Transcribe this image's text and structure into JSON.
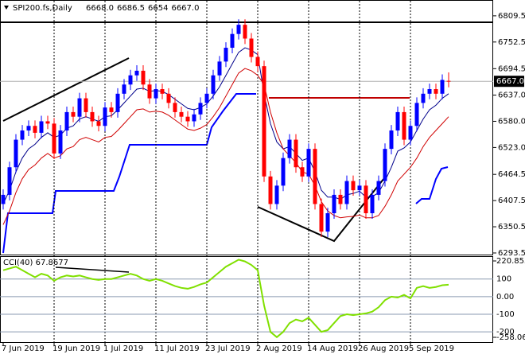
{
  "chart_data": [
    {
      "type": "candlestick",
      "title": "SPI200.fs,Daily",
      "header_values": [
        {
          "value": 6668,
          "label": "6668.0"
        },
        6686.5,
        6654,
        {
          "value": 6667,
          "label": "6667.0"
        }
      ],
      "categories": [
        "7 Jun 2019",
        null,
        null,
        null,
        null,
        null,
        null,
        null,
        "19 Jun 2019",
        null,
        null,
        null,
        null,
        null,
        null,
        null,
        "1 Jul 2019",
        null,
        null,
        null,
        null,
        null,
        null,
        null,
        "11 Jul 2019",
        null,
        null,
        null,
        null,
        null,
        null,
        null,
        "23 Jul 2019",
        null,
        null,
        null,
        null,
        null,
        null,
        null,
        "2 Aug 2019",
        null,
        null,
        null,
        null,
        null,
        null,
        null,
        "14 Aug 2019",
        null,
        null,
        null,
        null,
        null,
        null,
        null,
        "26 Aug 2019",
        null,
        null,
        null,
        null,
        null,
        null,
        null,
        "5 Sep 2019",
        null,
        null,
        null,
        null,
        null,
        null
      ],
      "open": [
        6400,
        6420,
        6480,
        6540,
        6560,
        6570,
        6555,
        6580,
        6575,
        6510,
        6560,
        6600,
        6590,
        6630,
        6600,
        6580,
        6570,
        6610,
        6600,
        6640,
        6660,
        6680,
        6690,
        6660,
        6630,
        6650,
        6640,
        6620,
        6600,
        6590,
        6580,
        6595,
        6620,
        6640,
        6680,
        6710,
        6740,
        6770,
        6790,
        6760,
        6720,
        6700,
        6460,
        6400,
        6440,
        6500,
        6540,
        6480,
        6460,
        6520,
        6400,
        6340,
        6380,
        6420,
        6400,
        6450,
        6430,
        6440,
        6380,
        6420,
        6450,
        6520,
        6560,
        6600,
        6540,
        6570,
        6620,
        6640,
        6650,
        6640,
        6668
      ],
      "high": [
        6432,
        6492,
        6552,
        6572,
        6582,
        6582,
        6592,
        6592,
        6587,
        6572,
        6612,
        6612,
        6642,
        6642,
        6612,
        6592,
        6622,
        6622,
        6652,
        6672,
        6692,
        6702,
        6702,
        6672,
        6662,
        6662,
        6652,
        6632,
        6612,
        6602,
        6607,
        6632,
        6652,
        6692,
        6722,
        6752,
        6782,
        6802,
        6802,
        6772,
        6732,
        6712,
        6472,
        6452,
        6512,
        6552,
        6552,
        6492,
        6532,
        6532,
        6412,
        6392,
        6432,
        6432,
        6462,
        6462,
        6452,
        6452,
        6432,
        6462,
        6532,
        6572,
        6612,
        6612,
        6582,
        6632,
        6652,
        6662,
        6662,
        6682,
        6686.5
      ],
      "low": [
        6388,
        6408,
        6468,
        6528,
        6548,
        6543,
        6543,
        6563,
        6498,
        6498,
        6548,
        6578,
        6578,
        6588,
        6568,
        6558,
        6558,
        6588,
        6588,
        6628,
        6648,
        6668,
        6648,
        6618,
        6618,
        6628,
        6608,
        6588,
        6578,
        6568,
        6568,
        6583,
        6608,
        6628,
        6668,
        6698,
        6728,
        6758,
        6748,
        6708,
        6688,
        6448,
        6388,
        6388,
        6428,
        6488,
        6468,
        6448,
        6448,
        6388,
        6328,
        6328,
        6368,
        6388,
        6388,
        6418,
        6418,
        6368,
        6368,
        6408,
        6438,
        6508,
        6548,
        6528,
        6528,
        6558,
        6608,
        6628,
        6628,
        6628,
        6654
      ],
      "close": [
        6420,
        6480,
        6540,
        6560,
        6570,
        6555,
        6580,
        6575,
        6510,
        6560,
        6600,
        6590,
        6630,
        6600,
        6580,
        6570,
        6610,
        6600,
        6640,
        6660,
        6680,
        6690,
        6660,
        6630,
        6650,
        6640,
        6620,
        6600,
        6590,
        6580,
        6595,
        6620,
        6640,
        6680,
        6710,
        6740,
        6770,
        6790,
        6760,
        6720,
        6700,
        6460,
        6400,
        6440,
        6500,
        6540,
        6480,
        6460,
        6520,
        6400,
        6340,
        6380,
        6420,
        6400,
        6450,
        6430,
        6440,
        6380,
        6420,
        6450,
        6520,
        6560,
        6600,
        6540,
        6570,
        6620,
        6640,
        6650,
        6640,
        6670,
        6667
      ],
      "series": [
        {
          "color": "#00008b",
          "values": [
            6400,
            6430,
            6470,
            6500,
            6520,
            6530,
            6545,
            6555,
            6545,
            6550,
            6565,
            6570,
            6585,
            6590,
            6585,
            6580,
            6590,
            6592,
            6605,
            6620,
            6635,
            6650,
            6652,
            6645,
            6647,
            6645,
            6638,
            6628,
            6618,
            6608,
            6605,
            6610,
            6618,
            6635,
            6655,
            6680,
            6705,
            6730,
            6740,
            6735,
            6725,
            6640,
            6575,
            6535,
            6520,
            6525,
            6510,
            6495,
            6500,
            6470,
            6430,
            6415,
            6415,
            6410,
            6420,
            6423,
            6428,
            6415,
            6416,
            6425,
            6450,
            6480,
            6515,
            6522,
            6535,
            6560,
            6585,
            6605,
            6615,
            6630,
            6640
          ]
        },
        {
          "color": "#d00000",
          "values": [
            6355,
            6385,
            6425,
            6455,
            6475,
            6485,
            6500,
            6510,
            6500,
            6505,
            6520,
            6525,
            6540,
            6545,
            6540,
            6535,
            6545,
            6547,
            6560,
            6575,
            6590,
            6605,
            6607,
            6600,
            6602,
            6600,
            6593,
            6583,
            6573,
            6563,
            6560,
            6565,
            6573,
            6590,
            6610,
            6635,
            6660,
            6685,
            6695,
            6690,
            6680,
            6660,
            6600,
            6555,
            6520,
            6505,
            6490,
            6470,
            6465,
            6440,
            6405,
            6385,
            6375,
            6370,
            6372,
            6373,
            6376,
            6370,
            6370,
            6375,
            6395,
            6420,
            6450,
            6465,
            6480,
            6500,
            6525,
            6545,
            6560,
            6575,
            6590
          ]
        }
      ],
      "up_color": "#0000ff",
      "down_color": "#ff0000",
      "ylim": [
        6290,
        6837
      ],
      "yticks": [
        6809.5,
        6752.5,
        6694.5,
        {
          "value": 6637,
          "label": "6637.0"
        },
        {
          "value": 6580,
          "label": "6580.0"
        },
        {
          "value": 6523,
          "label": "6523.0"
        },
        6464.5,
        6407.5,
        6350.5,
        6293.5
      ],
      "last_price": {
        "value": 6667,
        "label": "6667.0"
      }
    },
    {
      "type": "line",
      "title": "CCI(40) 67.8677",
      "color": "#80e000",
      "values": [
        150,
        160,
        170,
        150,
        130,
        110,
        130,
        120,
        90,
        110,
        120,
        115,
        120,
        110,
        100,
        95,
        100,
        100,
        110,
        120,
        130,
        120,
        100,
        90,
        100,
        90,
        75,
        60,
        50,
        45,
        55,
        70,
        80,
        110,
        140,
        170,
        190,
        210,
        200,
        180,
        150,
        -50,
        -200,
        -230,
        -200,
        -150,
        -130,
        -140,
        -120,
        -160,
        -200,
        -190,
        -150,
        -110,
        -100,
        -105,
        -100,
        -95,
        -85,
        -60,
        -20,
        0,
        -5,
        10,
        -10,
        50,
        60,
        50,
        55,
        65,
        67.8677
      ],
      "ylim": [
        -258.0618,
        220.8537
      ],
      "yticks": [
        220.8537,
        100,
        {
          "value": 0,
          "label": "0.00"
        },
        -100,
        -200,
        -258.0618
      ]
    }
  ]
}
